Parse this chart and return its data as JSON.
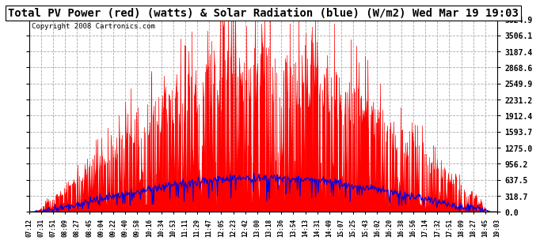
{
  "title": "Total PV Power (red) (watts) & Solar Radiation (blue) (W/m2) Wed Mar 19 19:03",
  "copyright": "Copyright 2008 Cartronics.com",
  "y_ticks": [
    0.0,
    318.7,
    637.5,
    956.2,
    1275.0,
    1593.7,
    1912.4,
    2231.2,
    2549.9,
    2868.6,
    3187.4,
    3506.1,
    3824.9
  ],
  "ylim": [
    0,
    3824.9
  ],
  "plot_bg_color": "#ffffff",
  "grid_color": "#aaaaaa",
  "red_color": "#ff0000",
  "blue_color": "#0000dd",
  "title_fontsize": 10,
  "copyright_fontsize": 6.5,
  "time_labels": [
    "07:12",
    "07:31",
    "07:51",
    "08:09",
    "08:27",
    "08:45",
    "09:04",
    "09:22",
    "09:40",
    "09:58",
    "10:16",
    "10:34",
    "10:53",
    "11:11",
    "11:29",
    "11:47",
    "12:05",
    "12:23",
    "12:42",
    "13:00",
    "13:18",
    "13:36",
    "13:54",
    "14:13",
    "14:31",
    "14:49",
    "15:07",
    "15:25",
    "15:43",
    "16:02",
    "16:20",
    "16:38",
    "16:56",
    "17:14",
    "17:32",
    "17:51",
    "18:09",
    "18:27",
    "18:45",
    "19:03"
  ],
  "n_points": 720,
  "pv_max": 3824.9,
  "solar_peak": 680
}
